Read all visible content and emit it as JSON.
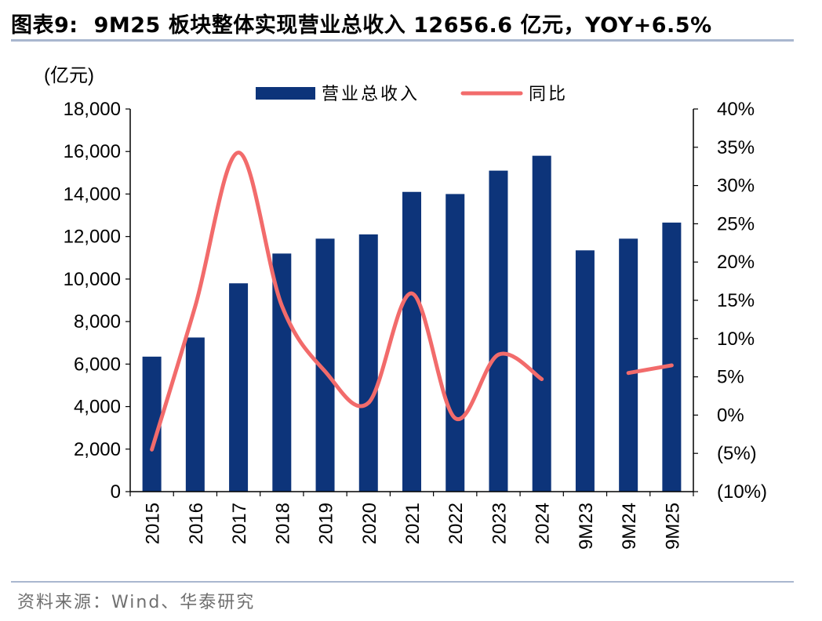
{
  "header": {
    "figure_label": "图表9:",
    "title": "9M25 板块整体实现营业总收入 12656.6 亿元，YOY+6.5%"
  },
  "footer": {
    "source": "资料来源：Wind、华泰研究"
  },
  "colors": {
    "bar": "#0d347a",
    "line": "#f26b6b",
    "rule": "#a9b7cf",
    "axis": "#000000"
  },
  "chart_data": {
    "type": "bar+line",
    "unit_label": "(亿元)",
    "categories": [
      "2015",
      "2016",
      "2017",
      "2018",
      "2019",
      "2020",
      "2021",
      "2022",
      "2023",
      "2024",
      "9M23",
      "9M24",
      "9M25"
    ],
    "series": [
      {
        "name": "营业总收入",
        "type": "bar",
        "axis": "left",
        "values": [
          6350,
          7250,
          9800,
          11200,
          11900,
          12100,
          14100,
          14000,
          15100,
          15800,
          11350,
          11900,
          12656.6
        ]
      },
      {
        "name": "同比",
        "type": "line",
        "axis": "right",
        "values": [
          -4.5,
          14.2,
          34.3,
          14.3,
          5.7,
          1.6,
          15.9,
          -0.4,
          7.9,
          4.7,
          null,
          5.5,
          6.5
        ]
      }
    ],
    "left_axis": {
      "min": 0,
      "max": 18000,
      "step": 2000,
      "tick_labels": [
        "0",
        "2,000",
        "4,000",
        "6,000",
        "8,000",
        "10,000",
        "12,000",
        "14,000",
        "16,000",
        "18,000"
      ]
    },
    "right_axis": {
      "min": -10,
      "max": 40,
      "step": 5,
      "tick_labels": [
        "(10%)",
        "(5%)",
        "0%",
        "5%",
        "10%",
        "15%",
        "20%",
        "25%",
        "30%",
        "35%",
        "40%"
      ]
    },
    "legend_position": "top-center"
  }
}
